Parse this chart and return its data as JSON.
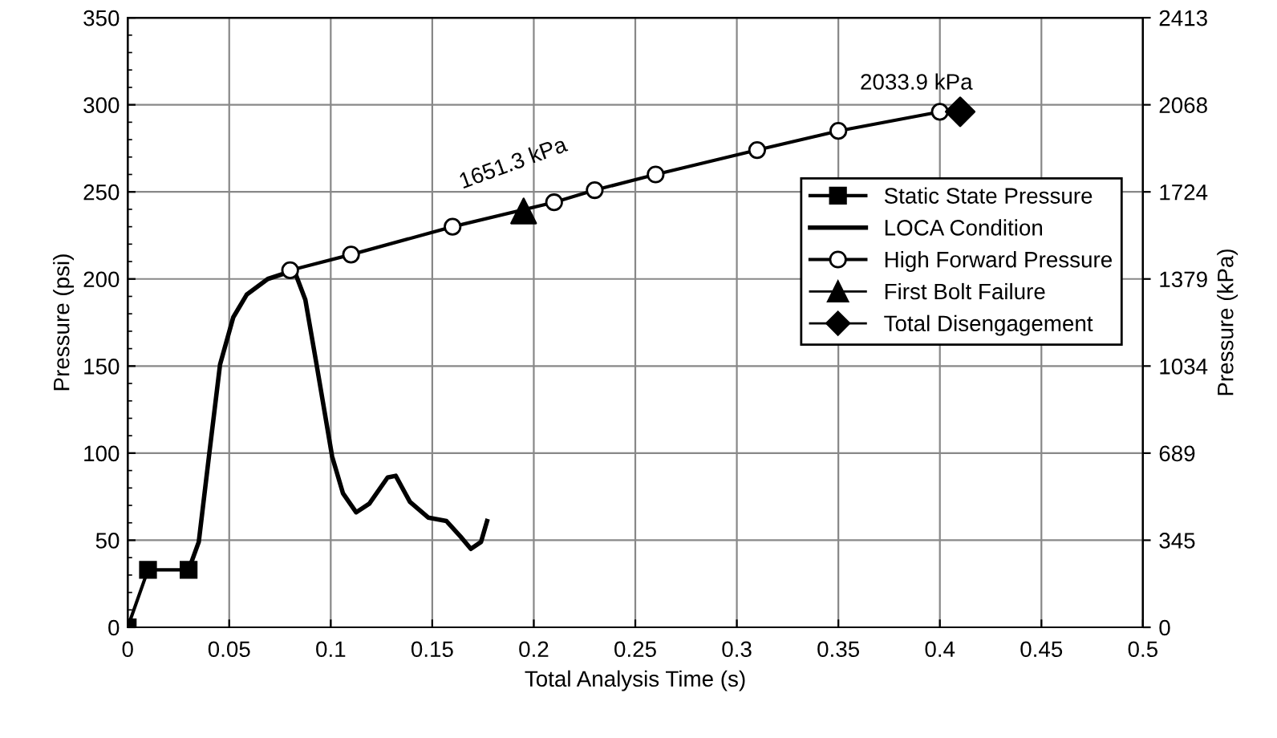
{
  "chart_data": {
    "type": "line",
    "xlabel": "Total Analysis Time (s)",
    "ylabel": "Pressure (psi)",
    "y2label": "Pressure (kPa)",
    "xlim": [
      0,
      0.5
    ],
    "xticks": [
      0,
      0.05,
      0.1,
      0.15,
      0.2,
      0.25,
      0.3,
      0.35,
      0.4,
      0.45,
      0.5
    ],
    "ylim": [
      0,
      350
    ],
    "yticks": [
      0,
      50,
      100,
      150,
      200,
      250,
      300,
      350
    ],
    "y2lim": [
      0,
      2413.17
    ],
    "y2ticks": [
      0,
      {
        "value": 344.74,
        "label": "345"
      },
      {
        "value": 689.48,
        "label": "689"
      },
      {
        "value": 1034.21,
        "label": "1034"
      },
      {
        "value": 1378.95,
        "label": "1379"
      },
      {
        "value": 1723.69,
        "label": "1724"
      },
      {
        "value": 2068.43,
        "label": "2068"
      },
      {
        "value": 2413.17,
        "label": "2413"
      }
    ],
    "grid": true,
    "legend": "right",
    "series": [
      {
        "name": "Static State Pressure",
        "color": "#000000",
        "marker": "square",
        "x": [
          0,
          0.01,
          0.03
        ],
        "values": [
          0,
          33,
          33
        ]
      },
      {
        "name": "LOCA Condition",
        "color": "#000000",
        "marker": "none",
        "x": [
          0.03,
          0.035,
          0.04,
          0.0455,
          0.052,
          0.0586,
          0.069,
          0.082,
          0.0875,
          0.093,
          0.1007,
          0.106,
          0.1125,
          0.119,
          0.128,
          0.132,
          0.139,
          0.148,
          0.157,
          0.164,
          0.169,
          0.174,
          0.177
        ],
        "values": [
          33,
          49,
          98,
          151,
          178,
          191,
          200,
          205,
          188,
          151,
          98,
          77,
          66,
          71,
          86,
          87,
          72,
          63,
          61,
          52,
          45,
          49,
          61
        ]
      },
      {
        "name": "High Forward Pressure",
        "color": "#000000",
        "marker": "circle",
        "x": [
          0.08,
          0.11,
          0.16,
          0.21,
          0.23,
          0.26,
          0.31,
          0.35,
          0.4
        ],
        "values": [
          205,
          214,
          230,
          244,
          251,
          260,
          274,
          285,
          296
        ]
      },
      {
        "name": "First Bolt Failure",
        "color": "#000000",
        "marker": "triangle",
        "type": "scatter",
        "x": [
          0.195
        ],
        "values": [
          239
        ]
      },
      {
        "name": "Total Disengagement",
        "color": "#000000",
        "marker": "diamond",
        "type": "scatter",
        "x": [
          0.41
        ],
        "values": [
          296
        ]
      }
    ],
    "annotations": [
      {
        "text": "1651.3 kPa",
        "x": 0.195,
        "y": 239
      },
      {
        "text": "2033.9 kPa",
        "x": 0.41,
        "y": 296
      }
    ]
  }
}
